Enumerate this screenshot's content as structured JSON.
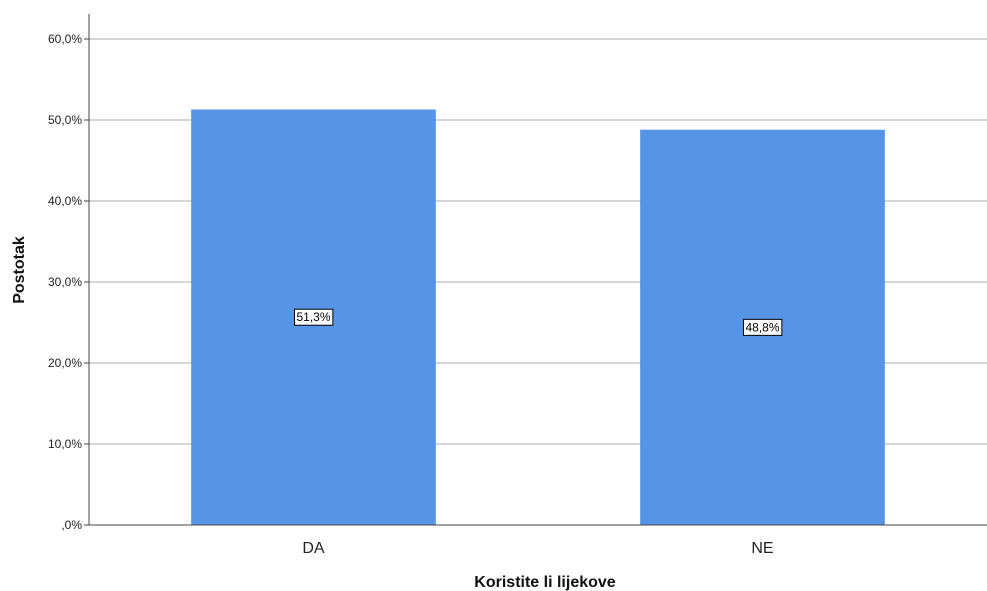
{
  "chart_data": {
    "type": "bar",
    "categories": [
      "DA",
      "NE"
    ],
    "values": [
      51.3,
      48.8
    ],
    "data_labels": [
      "51,3%",
      "48,8%"
    ],
    "xlabel": "Koristite li lijekove",
    "ylabel": "Postotak",
    "ylim": [
      0,
      60
    ],
    "yticks": [
      0,
      10,
      20,
      30,
      40,
      50,
      60
    ],
    "ytick_labels": [
      ",0%",
      "10,0%",
      "20,0%",
      "30,0%",
      "40,0%",
      "50,0%",
      "60,0%"
    ],
    "grid": true,
    "legend": "none",
    "bar_color": "#5694e6"
  }
}
